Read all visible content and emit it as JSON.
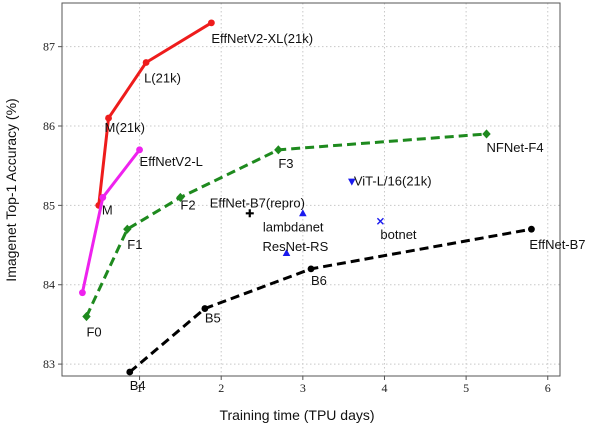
{
  "chart_data": {
    "type": "scatter",
    "xlabel": "Training time (TPU days)",
    "ylabel": "Imagenet Top-1 Accuracy (%)",
    "xlim": [
      0.05,
      6.15
    ],
    "ylim": [
      82.85,
      87.55
    ],
    "xticks": [
      1,
      2,
      3,
      4,
      5,
      6
    ],
    "yticks": [
      83,
      84,
      85,
      86,
      87
    ],
    "grid": true,
    "series": [
      {
        "color": "#ee1c1c",
        "dash": "solid",
        "marker": "circle",
        "points": [
          {
            "x": 0.5,
            "y": 85.0,
            "label": ""
          },
          {
            "x": 0.62,
            "y": 86.1,
            "label": "M(21k)"
          },
          {
            "x": 1.08,
            "y": 86.8,
            "label": "L(21k)"
          },
          {
            "x": 1.88,
            "y": 87.3,
            "label": "EffNetV2-XL(21k)"
          }
        ]
      },
      {
        "color": "#ee22ee",
        "dash": "solid",
        "marker": "circle",
        "points": [
          {
            "x": 0.3,
            "y": 83.9,
            "label": ""
          },
          {
            "x": 0.55,
            "y": 85.1,
            "label": "M"
          },
          {
            "x": 1.0,
            "y": 85.7,
            "label": "EffNetV2-L"
          }
        ]
      },
      {
        "color": "#1e8a1e",
        "dash": "dashed",
        "marker": "diamond",
        "points": [
          {
            "x": 0.35,
            "y": 83.6,
            "label": "F0"
          },
          {
            "x": 0.85,
            "y": 84.7,
            "label": "F1"
          },
          {
            "x": 1.5,
            "y": 85.1,
            "label": "F2"
          },
          {
            "x": 2.7,
            "y": 85.7,
            "label": "F3"
          },
          {
            "x": 5.25,
            "y": 85.9,
            "label": "NFNet-F4"
          }
        ]
      },
      {
        "color": "#000000",
        "dash": "dashed",
        "marker": "circle",
        "points": [
          {
            "x": 0.88,
            "y": 82.9,
            "label": "B4"
          },
          {
            "x": 1.8,
            "y": 83.7,
            "label": "B5"
          },
          {
            "x": 3.1,
            "y": 84.2,
            "label": "B6"
          },
          {
            "x": 5.8,
            "y": 84.7,
            "label": "EffNet-B7"
          }
        ]
      }
    ],
    "annotations": [
      {
        "x": 2.35,
        "y": 84.9,
        "label": "EffNet-B7(repro)",
        "marker": "plus",
        "color": "#000000"
      },
      {
        "x": 3.0,
        "y": 84.9,
        "label": "lambdanet",
        "marker": "triangle-up",
        "color": "#1a1aee"
      },
      {
        "x": 2.8,
        "y": 84.4,
        "label": "ResNet-RS",
        "marker": "triangle-up",
        "color": "#1a1aee"
      },
      {
        "x": 3.6,
        "y": 85.3,
        "label": "ViT-L/16(21k)",
        "marker": "triangle-down",
        "color": "#1a1aee"
      },
      {
        "x": 3.95,
        "y": 84.8,
        "label": "botnet",
        "marker": "x",
        "color": "#1a1aee"
      }
    ]
  }
}
